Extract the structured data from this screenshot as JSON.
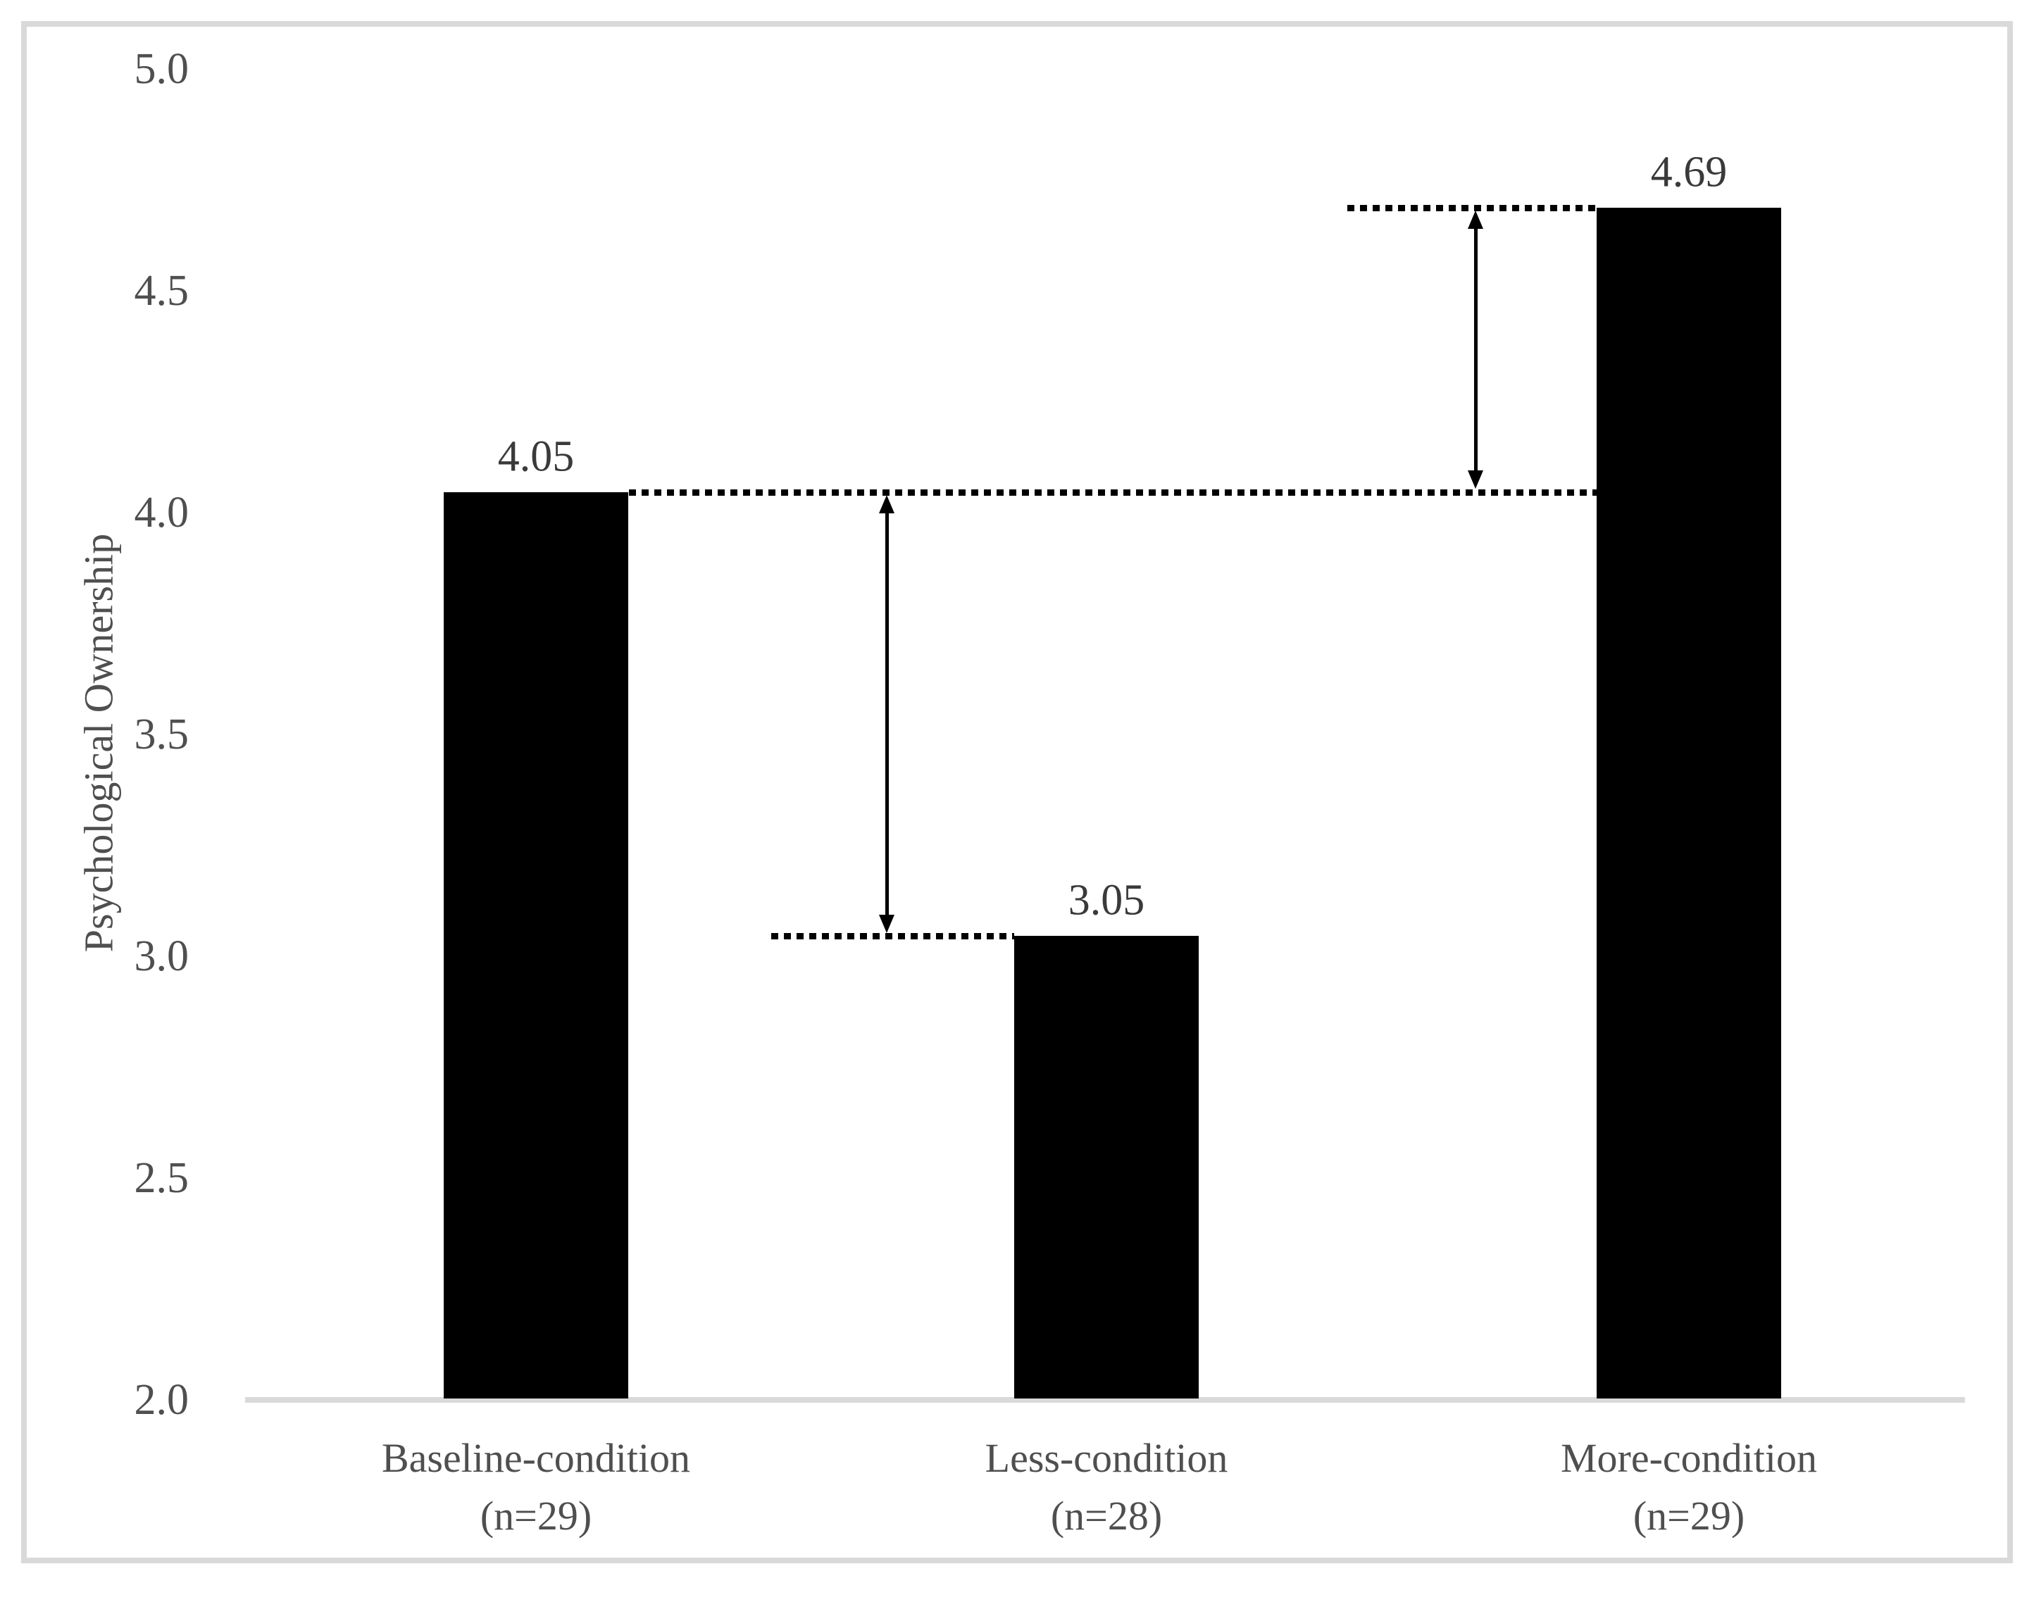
{
  "chart_data": {
    "type": "bar",
    "title": "",
    "ylabel": "Psychological Ownership",
    "xlabel": "",
    "ylim": [
      2.0,
      5.0
    ],
    "ytick_labels": [
      "5.0",
      "4.5",
      "4.0",
      "3.5",
      "3.0",
      "2.5",
      "2.0"
    ],
    "grid": false,
    "legend": null,
    "categories": [
      {
        "label": "Baseline-condition",
        "sub": "(n=29)"
      },
      {
        "label": "Less-condition",
        "sub": "(n=28)"
      },
      {
        "label": "More-condition",
        "sub": "(n=29)"
      }
    ],
    "values": [
      4.05,
      3.05,
      4.69
    ],
    "value_labels": [
      "4.05",
      "3.05",
      "4.69"
    ],
    "annotations": {
      "reference_lines": [
        {
          "level": 4.05,
          "style": "dotted"
        },
        {
          "level": 3.05,
          "style": "dotted"
        },
        {
          "level": 4.69,
          "style": "dotted"
        }
      ],
      "difference_arrows": [
        {
          "from": 3.05,
          "to": 4.05
        },
        {
          "from": 4.05,
          "to": 4.69
        }
      ]
    },
    "colors": {
      "bar": "#000000",
      "annotation": "#000000",
      "frame": "#d9d9d9",
      "axis_line": "#d9d9d9",
      "tick_text": "#4f4f4f",
      "value_text": "#3a3a3a",
      "category_text": "#4f4f4f"
    }
  }
}
